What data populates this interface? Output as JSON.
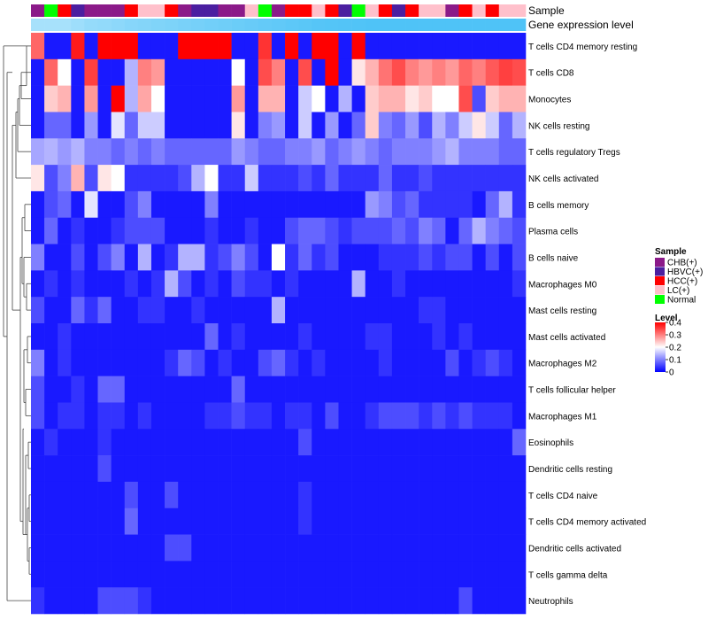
{
  "chart_data": {
    "type": "heatmap",
    "annotation_labels": {
      "sample": "Sample",
      "gene": "Gene expression level"
    },
    "rows": [
      "T cells CD4 memory resting",
      "T cells CD8",
      "Monocytes",
      "NK cells resting",
      "T cells regulatory  Tregs",
      "NK cells activated",
      "B cells memory",
      "Plasma cells",
      "B cells naive",
      "Macrophages M0",
      "Mast cells resting",
      "Mast cells activated",
      "Macrophages M2",
      "T cells follicular helper",
      "Macrophages M1",
      "Eosinophils",
      "Dendritic cells resting",
      "T cells CD4 naive",
      "T cells CD4 memory activated",
      "Dendritic cells activated",
      "T cells gamma delta",
      "Neutrophils"
    ],
    "sample_groups": [
      "CHB(+)",
      "Normal",
      "HCC(+)",
      "HBVC(+)",
      "CHB(+)",
      "CHB(+)",
      "CHB(+)",
      "HCC(+)",
      "LC(+)",
      "LC(+)",
      "HCC(+)",
      "CHB(+)",
      "HBVC(+)",
      "HBVC(+)",
      "CHB(+)",
      "CHB(+)",
      "LC(+)",
      "Normal",
      "CHB(+)",
      "HCC(+)",
      "HCC(+)",
      "LC(+)",
      "HCC(+)",
      "HBVC(+)",
      "Normal",
      "LC(+)",
      "HCC(+)",
      "HBVC(+)",
      "HCC(+)",
      "LC(+)",
      "LC(+)",
      "CHB(+)",
      "HCC(+)",
      "LC(+)",
      "HCC(+)",
      "LC(+)",
      "LC(+)"
    ],
    "gene_expression_bar": [
      0.5,
      0.5,
      0.5,
      0.55,
      0.6,
      0.62,
      0.65,
      0.68,
      0.7,
      0.72,
      0.74,
      0.76,
      0.78,
      0.8,
      0.82,
      0.84,
      0.86,
      0.88,
      0.9,
      0.92,
      0.94,
      0.96,
      0.97,
      0.98,
      0.99,
      1,
      1,
      1,
      1,
      1,
      1,
      1,
      1,
      1,
      1,
      1,
      1
    ],
    "values": [
      [
        0.32,
        0.02,
        0.02,
        0.38,
        0.02,
        0.4,
        0.4,
        0.4,
        0.02,
        0.02,
        0.02,
        0.4,
        0.4,
        0.4,
        0.4,
        0.02,
        0.02,
        0.36,
        0.02,
        0.4,
        0.02,
        0.4,
        0.4,
        0.02,
        0.4,
        0.02,
        0.02,
        0.02,
        0.02,
        0.02,
        0.02,
        0.02,
        0.02,
        0.02,
        0.02,
        0.02,
        0.02
      ],
      [
        0.02,
        0.32,
        0.2,
        0.02,
        0.35,
        0.02,
        0.02,
        0.14,
        0.3,
        0.28,
        0.02,
        0.02,
        0.02,
        0.02,
        0.02,
        0.2,
        0.02,
        0.34,
        0.3,
        0.02,
        0.34,
        0.02,
        0.4,
        0.02,
        0.22,
        0.26,
        0.31,
        0.34,
        0.3,
        0.28,
        0.3,
        0.28,
        0.32,
        0.3,
        0.33,
        0.35,
        0.34
      ],
      [
        0.02,
        0.24,
        0.26,
        0.02,
        0.28,
        0.02,
        0.4,
        0.14,
        0.27,
        0.2,
        0.02,
        0.02,
        0.02,
        0.02,
        0.02,
        0.28,
        0.02,
        0.26,
        0.26,
        0.02,
        0.16,
        0.2,
        0.02,
        0.14,
        0.02,
        0.24,
        0.26,
        0.26,
        0.22,
        0.24,
        0.2,
        0.2,
        0.34,
        0.06,
        0.24,
        0.26,
        0.26
      ],
      [
        0.02,
        0.08,
        0.08,
        0.02,
        0.12,
        0.02,
        0.18,
        0.08,
        0.16,
        0.16,
        0.02,
        0.02,
        0.02,
        0.02,
        0.02,
        0.22,
        0.02,
        0.1,
        0.12,
        0.02,
        0.16,
        0.02,
        0.12,
        0.02,
        0.08,
        0.24,
        0.1,
        0.08,
        0.12,
        0.06,
        0.14,
        0.1,
        0.16,
        0.22,
        0.16,
        0.08,
        0.14
      ],
      [
        0.13,
        0.14,
        0.12,
        0.14,
        0.1,
        0.1,
        0.08,
        0.1,
        0.08,
        0.1,
        0.08,
        0.08,
        0.08,
        0.08,
        0.08,
        0.12,
        0.1,
        0.08,
        0.08,
        0.1,
        0.1,
        0.12,
        0.08,
        0.1,
        0.12,
        0.1,
        0.08,
        0.1,
        0.1,
        0.1,
        0.12,
        0.14,
        0.1,
        0.1,
        0.1,
        0.08,
        0.08
      ],
      [
        0.22,
        0.06,
        0.1,
        0.26,
        0.06,
        0.22,
        0.2,
        0.04,
        0.04,
        0.04,
        0.04,
        0.06,
        0.14,
        0.2,
        0.04,
        0.04,
        0.16,
        0.04,
        0.04,
        0.04,
        0.06,
        0.04,
        0.08,
        0.04,
        0.04,
        0.04,
        0.08,
        0.04,
        0.04,
        0.06,
        0.04,
        0.04,
        0.04,
        0.04,
        0.04,
        0.04,
        0.04
      ],
      [
        0.02,
        0.06,
        0.08,
        0.02,
        0.18,
        0.02,
        0.02,
        0.06,
        0.1,
        0.02,
        0.02,
        0.02,
        0.02,
        0.1,
        0.02,
        0.02,
        0.02,
        0.02,
        0.02,
        0.02,
        0.02,
        0.02,
        0.02,
        0.02,
        0.02,
        0.12,
        0.1,
        0.06,
        0.08,
        0.04,
        0.04,
        0.04,
        0.04,
        0.02,
        0.08,
        0.14,
        0.04
      ],
      [
        0.02,
        0.08,
        0.02,
        0.04,
        0.02,
        0.02,
        0.04,
        0.06,
        0.06,
        0.06,
        0.02,
        0.02,
        0.02,
        0.04,
        0.02,
        0.02,
        0.04,
        0.02,
        0.02,
        0.06,
        0.08,
        0.08,
        0.06,
        0.04,
        0.06,
        0.06,
        0.06,
        0.08,
        0.06,
        0.1,
        0.08,
        0.02,
        0.08,
        0.14,
        0.1,
        0.08,
        0.06
      ],
      [
        0.1,
        0.02,
        0.02,
        0.06,
        0.02,
        0.06,
        0.1,
        0.02,
        0.14,
        0.02,
        0.04,
        0.14,
        0.14,
        0.04,
        0.06,
        0.1,
        0.06,
        0.02,
        0.2,
        0.04,
        0.08,
        0.04,
        0.06,
        0.02,
        0.02,
        0.02,
        0.04,
        0.04,
        0.04,
        0.06,
        0.04,
        0.06,
        0.06,
        0.02,
        0.06,
        0.02,
        0.06
      ],
      [
        0.02,
        0.04,
        0.02,
        0.04,
        0.02,
        0.02,
        0.02,
        0.04,
        0.02,
        0.04,
        0.14,
        0.06,
        0.02,
        0.04,
        0.02,
        0.06,
        0.04,
        0.04,
        0.02,
        0.04,
        0.02,
        0.02,
        0.02,
        0.02,
        0.14,
        0.02,
        0.02,
        0.04,
        0.02,
        0.02,
        0.02,
        0.02,
        0.02,
        0.02,
        0.02,
        0.02,
        0.04
      ],
      [
        0.06,
        0.02,
        0.02,
        0.08,
        0.04,
        0.08,
        0.02,
        0.02,
        0.04,
        0.04,
        0.02,
        0.02,
        0.04,
        0.02,
        0.02,
        0.02,
        0.02,
        0.02,
        0.14,
        0.02,
        0.02,
        0.02,
        0.02,
        0.02,
        0.02,
        0.02,
        0.02,
        0.02,
        0.02,
        0.04,
        0.04,
        0.02,
        0.02,
        0.02,
        0.02,
        0.02,
        0.02
      ],
      [
        0.02,
        0.02,
        0.04,
        0.02,
        0.02,
        0.02,
        0.02,
        0.02,
        0.02,
        0.02,
        0.02,
        0.02,
        0.02,
        0.08,
        0.02,
        0.04,
        0.02,
        0.02,
        0.02,
        0.02,
        0.04,
        0.02,
        0.02,
        0.02,
        0.02,
        0.04,
        0.04,
        0.02,
        0.02,
        0.02,
        0.04,
        0.02,
        0.04,
        0.02,
        0.02,
        0.02,
        0.02
      ],
      [
        0.1,
        0.02,
        0.04,
        0.02,
        0.02,
        0.02,
        0.02,
        0.02,
        0.02,
        0.02,
        0.04,
        0.08,
        0.06,
        0.02,
        0.04,
        0.02,
        0.02,
        0.06,
        0.08,
        0.04,
        0.02,
        0.04,
        0.02,
        0.02,
        0.02,
        0.02,
        0.04,
        0.02,
        0.02,
        0.02,
        0.02,
        0.06,
        0.02,
        0.04,
        0.06,
        0.04,
        0.02
      ],
      [
        0.06,
        0.02,
        0.02,
        0.04,
        0.02,
        0.08,
        0.08,
        0.02,
        0.02,
        0.02,
        0.02,
        0.02,
        0.02,
        0.02,
        0.02,
        0.08,
        0.02,
        0.02,
        0.02,
        0.02,
        0.02,
        0.02,
        0.02,
        0.02,
        0.02,
        0.02,
        0.02,
        0.02,
        0.02,
        0.02,
        0.02,
        0.02,
        0.02,
        0.02,
        0.02,
        0.02,
        0.02
      ],
      [
        0.06,
        0.02,
        0.04,
        0.04,
        0.02,
        0.04,
        0.04,
        0.02,
        0.04,
        0.02,
        0.02,
        0.02,
        0.02,
        0.04,
        0.04,
        0.06,
        0.04,
        0.04,
        0.02,
        0.04,
        0.04,
        0.02,
        0.06,
        0.02,
        0.02,
        0.04,
        0.06,
        0.06,
        0.06,
        0.04,
        0.06,
        0.04,
        0.06,
        0.04,
        0.04,
        0.04,
        0.02
      ],
      [
        0.02,
        0.04,
        0.02,
        0.02,
        0.02,
        0.04,
        0.02,
        0.02,
        0.02,
        0.02,
        0.02,
        0.02,
        0.02,
        0.02,
        0.02,
        0.02,
        0.02,
        0.02,
        0.02,
        0.02,
        0.06,
        0.02,
        0.02,
        0.02,
        0.02,
        0.02,
        0.02,
        0.02,
        0.02,
        0.02,
        0.02,
        0.02,
        0.02,
        0.02,
        0.02,
        0.02,
        0.08
      ],
      [
        0.02,
        0.02,
        0.02,
        0.02,
        0.02,
        0.06,
        0.02,
        0.02,
        0.02,
        0.02,
        0.02,
        0.02,
        0.02,
        0.02,
        0.02,
        0.02,
        0.02,
        0.02,
        0.02,
        0.02,
        0.02,
        0.02,
        0.02,
        0.02,
        0.02,
        0.02,
        0.02,
        0.02,
        0.02,
        0.02,
        0.02,
        0.02,
        0.02,
        0.02,
        0.02,
        0.02,
        0.02
      ],
      [
        0.02,
        0.02,
        0.02,
        0.02,
        0.02,
        0.02,
        0.02,
        0.06,
        0.02,
        0.02,
        0.06,
        0.02,
        0.02,
        0.02,
        0.02,
        0.02,
        0.02,
        0.02,
        0.02,
        0.02,
        0.04,
        0.02,
        0.02,
        0.02,
        0.02,
        0.02,
        0.02,
        0.02,
        0.02,
        0.02,
        0.02,
        0.02,
        0.02,
        0.02,
        0.02,
        0.02,
        0.02
      ],
      [
        0.02,
        0.02,
        0.02,
        0.02,
        0.02,
        0.02,
        0.02,
        0.08,
        0.02,
        0.02,
        0.02,
        0.02,
        0.02,
        0.02,
        0.02,
        0.02,
        0.02,
        0.02,
        0.02,
        0.02,
        0.04,
        0.02,
        0.02,
        0.02,
        0.02,
        0.02,
        0.02,
        0.02,
        0.02,
        0.02,
        0.02,
        0.02,
        0.02,
        0.02,
        0.02,
        0.02,
        0.02
      ],
      [
        0.02,
        0.02,
        0.02,
        0.02,
        0.02,
        0.02,
        0.02,
        0.02,
        0.02,
        0.02,
        0.06,
        0.06,
        0.02,
        0.02,
        0.02,
        0.02,
        0.02,
        0.02,
        0.02,
        0.02,
        0.02,
        0.02,
        0.02,
        0.02,
        0.02,
        0.02,
        0.02,
        0.02,
        0.02,
        0.02,
        0.02,
        0.02,
        0.02,
        0.02,
        0.02,
        0.02,
        0.02
      ],
      [
        0.02,
        0.02,
        0.02,
        0.02,
        0.02,
        0.02,
        0.02,
        0.02,
        0.02,
        0.02,
        0.02,
        0.02,
        0.02,
        0.02,
        0.02,
        0.02,
        0.02,
        0.02,
        0.02,
        0.02,
        0.02,
        0.02,
        0.02,
        0.02,
        0.02,
        0.02,
        0.02,
        0.02,
        0.02,
        0.02,
        0.02,
        0.02,
        0.02,
        0.02,
        0.02,
        0.02,
        0.02
      ],
      [
        0.04,
        0.02,
        0.02,
        0.02,
        0.02,
        0.06,
        0.06,
        0.06,
        0.04,
        0.02,
        0.02,
        0.02,
        0.02,
        0.02,
        0.02,
        0.02,
        0.02,
        0.02,
        0.02,
        0.02,
        0.02,
        0.02,
        0.02,
        0.02,
        0.02,
        0.02,
        0.02,
        0.02,
        0.02,
        0.02,
        0.02,
        0.02,
        0.06,
        0.02,
        0.02,
        0.02,
        0.02
      ]
    ],
    "legend": {
      "sample_title": "Sample",
      "sample_items": [
        {
          "label": "CHB(+)",
          "color": "#8b1a89"
        },
        {
          "label": "HBVC(+)",
          "color": "#4b1fa0"
        },
        {
          "label": "HCC(+)",
          "color": "#ff0000"
        },
        {
          "label": "LC(+)",
          "color": "#ffc0cb"
        },
        {
          "label": "Normal",
          "color": "#00ff00"
        }
      ],
      "level_title": "Level",
      "level_ticks": [
        0.4,
        0.3,
        0.2,
        0.1,
        0
      ],
      "level_range": [
        0,
        0.4
      ]
    },
    "colors": {
      "low": "#0000ff",
      "mid": "#ffffff",
      "high": "#ff0000",
      "gene_bar_low": "#ffffff",
      "gene_bar_high": "#4fc3f7"
    }
  }
}
